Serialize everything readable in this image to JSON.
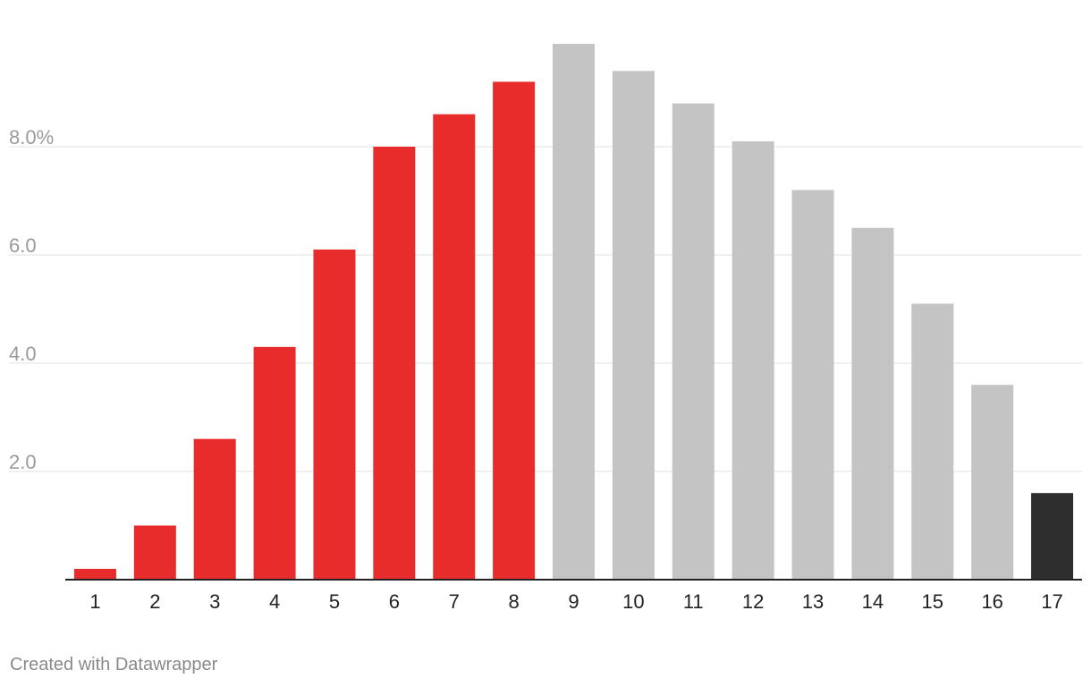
{
  "chart_data": {
    "type": "bar",
    "categories": [
      "1",
      "2",
      "3",
      "4",
      "5",
      "6",
      "7",
      "8",
      "9",
      "10",
      "11",
      "12",
      "13",
      "14",
      "15",
      "16",
      "17"
    ],
    "values": [
      0.2,
      1.0,
      2.6,
      4.3,
      6.1,
      8.0,
      8.6,
      9.2,
      9.9,
      9.4,
      8.8,
      8.1,
      7.2,
      6.5,
      5.1,
      3.6,
      1.6
    ],
    "bar_colors": [
      "#e82c2c",
      "#e82c2c",
      "#e82c2c",
      "#e82c2c",
      "#e82c2c",
      "#e82c2c",
      "#e82c2c",
      "#e82c2c",
      "#c4c4c4",
      "#c4c4c4",
      "#c4c4c4",
      "#c4c4c4",
      "#c4c4c4",
      "#c4c4c4",
      "#c4c4c4",
      "#c4c4c4",
      "#2e2e2e"
    ],
    "title": "",
    "xlabel": "",
    "ylabel": "",
    "ylim": [
      0,
      10
    ],
    "yticks": [
      2,
      4,
      6,
      8
    ],
    "ytick_labels": [
      "2.0",
      "4.0",
      "6.0",
      "8.0%"
    ],
    "grid": true,
    "legend": "none"
  },
  "footer": {
    "credit": "Created with Datawrapper"
  },
  "colors": {
    "highlight": "#e82c2c",
    "neutral": "#c4c4c4",
    "last": "#2e2e2e"
  }
}
